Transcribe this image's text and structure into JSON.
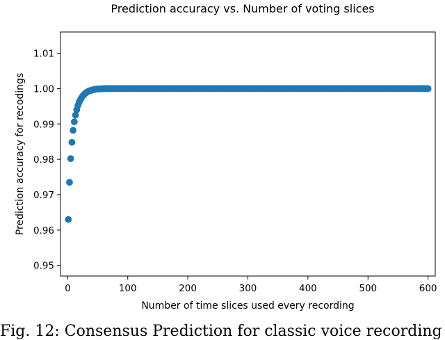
{
  "chart_data": {
    "type": "scatter",
    "title": "Prediction accuracy vs. Number of voting slices",
    "xlabel": "Number of time slices used every recording",
    "ylabel": "Prediction accuracy for recodings",
    "xlim": [
      -12,
      612
    ],
    "ylim": [
      0.947,
      1.016
    ],
    "xticks": [
      0,
      100,
      200,
      300,
      400,
      500,
      600
    ],
    "yticks": [
      0.95,
      0.96,
      0.97,
      0.98,
      0.99,
      1.0,
      1.01
    ],
    "ytick_labels": [
      "0.95",
      "0.96",
      "0.97",
      "0.98",
      "0.99",
      "1.00",
      "1.01"
    ],
    "grid": false,
    "marker_color": "#1f77b4",
    "x": [
      1,
      3,
      5,
      7,
      9,
      11,
      13,
      15,
      17,
      19,
      21,
      23,
      25,
      27,
      29,
      31,
      33,
      35,
      37,
      39,
      41,
      43,
      45,
      47,
      49,
      51,
      55,
      60,
      65,
      70,
      80,
      90,
      100,
      150,
      200,
      250,
      300,
      350,
      400,
      450,
      500,
      550,
      600
    ],
    "y": [
      0.963,
      0.9735,
      0.9802,
      0.9848,
      0.9882,
      0.9906,
      0.9925,
      0.994,
      0.9952,
      0.9961,
      0.9968,
      0.9974,
      0.9979,
      0.9983,
      0.9986,
      0.9989,
      0.9991,
      0.9993,
      0.9994,
      0.9995,
      0.9996,
      0.9997,
      0.9998,
      0.9998,
      0.9999,
      0.9999,
      0.9999,
      1.0,
      1.0,
      1.0,
      1.0,
      1.0,
      1.0,
      1.0,
      1.0,
      1.0,
      1.0,
      1.0,
      1.0,
      1.0,
      1.0,
      1.0,
      1.0
    ]
  },
  "caption": "Fig. 12: Consensus Prediction for classic voice recording"
}
